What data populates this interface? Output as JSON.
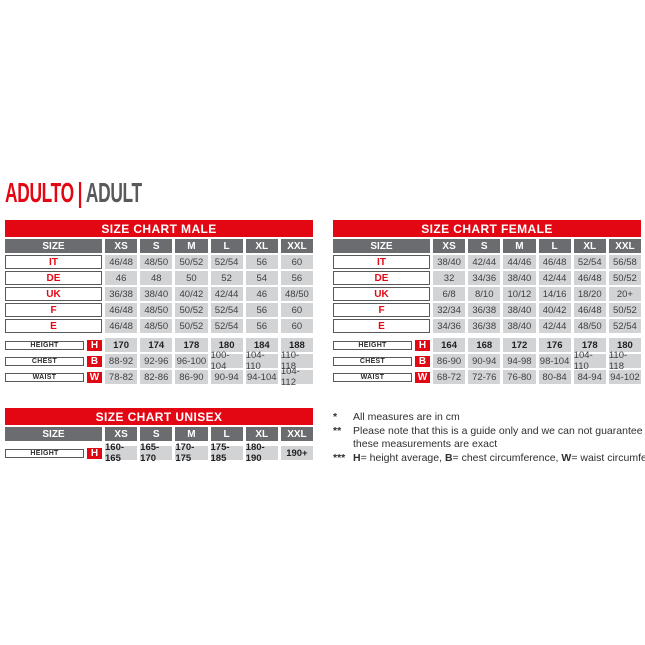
{
  "title": {
    "primary": "ADULTO",
    "separator": "|",
    "secondary": "ADULT"
  },
  "colors": {
    "red": "#E30613",
    "header_gray": "#6A6C6F",
    "cell_gray": "#D2D3D5",
    "title_gray": "#58595B"
  },
  "tables": [
    {
      "id": "male",
      "title": "SIZE CHART MALE",
      "size_label": "SIZE",
      "columns": [
        "XS",
        "S",
        "M",
        "L",
        "XL",
        "XXL"
      ],
      "size_rows": [
        {
          "label": "IT",
          "values": [
            "46/48",
            "48/50",
            "50/52",
            "52/54",
            "56",
            "60"
          ]
        },
        {
          "label": "DE",
          "values": [
            "46",
            "48",
            "50",
            "52",
            "54",
            "56"
          ]
        },
        {
          "label": "UK",
          "values": [
            "36/38",
            "38/40",
            "40/42",
            "42/44",
            "46",
            "48/50"
          ]
        },
        {
          "label": "F",
          "values": [
            "46/48",
            "48/50",
            "50/52",
            "52/54",
            "56",
            "60"
          ]
        },
        {
          "label": "E",
          "values": [
            "46/48",
            "48/50",
            "50/52",
            "52/54",
            "56",
            "60"
          ]
        }
      ],
      "measure_rows": [
        {
          "label": "HEIGHT",
          "badge": "H",
          "bold": true,
          "values": [
            "170",
            "174",
            "178",
            "180",
            "184",
            "188"
          ]
        },
        {
          "label": "CHEST",
          "badge": "B",
          "bold": false,
          "values": [
            "88-92",
            "92-96",
            "96-100",
            "100-104",
            "104-110",
            "110-118"
          ]
        },
        {
          "label": "WAIST",
          "badge": "W",
          "bold": false,
          "values": [
            "78-82",
            "82-86",
            "86-90",
            "90-94",
            "94-104",
            "104-112"
          ]
        }
      ]
    },
    {
      "id": "female",
      "title": "SIZE CHART FEMALE",
      "size_label": "SIZE",
      "columns": [
        "XS",
        "S",
        "M",
        "L",
        "XL",
        "XXL"
      ],
      "size_rows": [
        {
          "label": "IT",
          "values": [
            "38/40",
            "42/44",
            "44/46",
            "46/48",
            "52/54",
            "56/58"
          ]
        },
        {
          "label": "DE",
          "values": [
            "32",
            "34/36",
            "38/40",
            "42/44",
            "46/48",
            "50/52"
          ]
        },
        {
          "label": "UK",
          "values": [
            "6/8",
            "8/10",
            "10/12",
            "14/16",
            "18/20",
            "20+"
          ]
        },
        {
          "label": "F",
          "values": [
            "32/34",
            "36/38",
            "38/40",
            "40/42",
            "46/48",
            "50/52"
          ]
        },
        {
          "label": "E",
          "values": [
            "34/36",
            "36/38",
            "38/40",
            "42/44",
            "48/50",
            "52/54"
          ]
        }
      ],
      "measure_rows": [
        {
          "label": "HEIGHT",
          "badge": "H",
          "bold": true,
          "values": [
            "164",
            "168",
            "172",
            "176",
            "178",
            "180"
          ]
        },
        {
          "label": "CHEST",
          "badge": "B",
          "bold": false,
          "values": [
            "86-90",
            "90-94",
            "94-98",
            "98-104",
            "104-110",
            "110-118"
          ]
        },
        {
          "label": "WAIST",
          "badge": "W",
          "bold": false,
          "values": [
            "68-72",
            "72-76",
            "76-80",
            "80-84",
            "84-94",
            "94-102"
          ]
        }
      ]
    },
    {
      "id": "unisex",
      "title": "SIZE CHART UNISEX",
      "size_label": "SIZE",
      "columns": [
        "XS",
        "S",
        "M",
        "L",
        "XL",
        "XXL"
      ],
      "size_rows": [],
      "measure_rows": [
        {
          "label": "HEIGHT",
          "badge": "H",
          "bold": true,
          "values": [
            "160-165",
            "165-170",
            "170-175",
            "175-185",
            "180-190",
            "190+"
          ]
        }
      ]
    }
  ],
  "footnotes": [
    {
      "marker": "*",
      "nowrap": true,
      "segments": [
        {
          "text": "All measures are in cm",
          "bold": false
        }
      ]
    },
    {
      "marker": "**",
      "nowrap": false,
      "segments": [
        {
          "text": "Please note that this is a guide only and we can not guarantee\nthese measurements are exact",
          "bold": false
        }
      ]
    },
    {
      "marker": "***",
      "nowrap": true,
      "segments": [
        {
          "text": "H",
          "bold": true
        },
        {
          "text": "= height average, ",
          "bold": false
        },
        {
          "text": "B",
          "bold": true
        },
        {
          "text": "= chest circumference, ",
          "bold": false
        },
        {
          "text": "W",
          "bold": true
        },
        {
          "text": "= waist circumference",
          "bold": false
        }
      ]
    }
  ]
}
